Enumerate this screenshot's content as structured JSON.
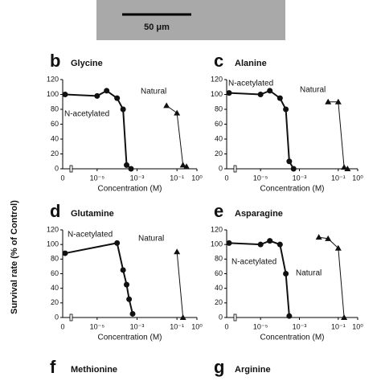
{
  "scale_bar": "50 μm",
  "y_axis_label": "Survival rate (% of Control)",
  "chart_data": [
    {
      "type": "line",
      "panel": "b",
      "title": "Glycine",
      "x_label": "Concentration (M)",
      "zero_label": "0",
      "xscale": "log",
      "xlim": [
        1e-06,
        1
      ],
      "xticks": [
        {
          "value": 1e-05,
          "label": "10⁻⁵"
        },
        {
          "value": 0.001,
          "label": "10⁻³"
        },
        {
          "value": 0.1,
          "label": "10⁻¹"
        },
        {
          "value": 1,
          "label": "10⁰"
        }
      ],
      "ylim": [
        0,
        120
      ],
      "yticks": [
        0,
        20,
        40,
        60,
        80,
        100,
        120
      ],
      "series": [
        {
          "name": "N-acetylated",
          "marker": "circle",
          "color": "#111",
          "x": [
            0,
            1e-05,
            3e-05,
            0.0001,
            0.0002,
            0.0003,
            0.0005
          ],
          "values": [
            100,
            98,
            105,
            95,
            80,
            5,
            0
          ]
        },
        {
          "name": "Natural",
          "marker": "triangle",
          "color": "#111",
          "x": [
            0.03,
            0.1,
            0.2,
            0.3
          ],
          "values": [
            85,
            75,
            5,
            3
          ]
        }
      ]
    },
    {
      "type": "line",
      "panel": "c",
      "title": "Alanine",
      "x_label": "Concentration (M)",
      "zero_label": "0",
      "xscale": "log",
      "xlim": [
        1e-06,
        1
      ],
      "xticks": [
        {
          "value": 1e-05,
          "label": "10⁻⁵"
        },
        {
          "value": 0.001,
          "label": "10⁻³"
        },
        {
          "value": 0.1,
          "label": "10⁻¹"
        },
        {
          "value": 1,
          "label": "10⁰"
        }
      ],
      "ylim": [
        0,
        120
      ],
      "yticks": [
        0,
        20,
        40,
        60,
        80,
        100,
        120
      ],
      "series": [
        {
          "name": "N-acetylated",
          "marker": "circle",
          "color": "#111",
          "x": [
            0,
            1e-05,
            3e-05,
            0.0001,
            0.0002,
            0.0003,
            0.0005
          ],
          "values": [
            102,
            100,
            105,
            95,
            80,
            10,
            0
          ]
        },
        {
          "name": "Natural",
          "marker": "triangle",
          "color": "#111",
          "x": [
            0.03,
            0.1,
            0.2,
            0.3
          ],
          "values": [
            90,
            90,
            2,
            0
          ]
        }
      ]
    },
    {
      "type": "line",
      "panel": "d",
      "title": "Glutamine",
      "x_label": "Concentration (M)",
      "zero_label": "0",
      "xscale": "log",
      "xlim": [
        1e-06,
        1
      ],
      "xticks": [
        {
          "value": 1e-05,
          "label": "10⁻⁵"
        },
        {
          "value": 0.001,
          "label": "10⁻³"
        },
        {
          "value": 0.1,
          "label": "10⁻¹"
        },
        {
          "value": 1,
          "label": "10⁰"
        }
      ],
      "ylim": [
        0,
        120
      ],
      "yticks": [
        0,
        20,
        40,
        60,
        80,
        100,
        120
      ],
      "series": [
        {
          "name": "N-acetylated",
          "marker": "circle",
          "color": "#111",
          "x": [
            0,
            0.0001,
            0.0002,
            0.0003,
            0.0004,
            0.0006
          ],
          "values": [
            88,
            102,
            65,
            45,
            25,
            5
          ]
        },
        {
          "name": "Natural",
          "marker": "triangle",
          "color": "#111",
          "x": [
            0.1,
            0.2
          ],
          "values": [
            90,
            0
          ]
        }
      ]
    },
    {
      "type": "line",
      "panel": "e",
      "title": "Asparagine",
      "x_label": "Concentration (M)",
      "zero_label": "0",
      "xscale": "log",
      "xlim": [
        1e-06,
        1
      ],
      "xticks": [
        {
          "value": 1e-05,
          "label": "10⁻⁵"
        },
        {
          "value": 0.001,
          "label": "10⁻³"
        },
        {
          "value": 0.1,
          "label": "10⁻¹"
        },
        {
          "value": 1,
          "label": "10⁰"
        }
      ],
      "ylim": [
        0,
        120
      ],
      "yticks": [
        0,
        20,
        40,
        60,
        80,
        100,
        120
      ],
      "series": [
        {
          "name": "N-acetylated",
          "marker": "circle",
          "color": "#111",
          "x": [
            0,
            1e-05,
            3e-05,
            0.0001,
            0.0002,
            0.0003
          ],
          "values": [
            102,
            100,
            105,
            100,
            60,
            2
          ]
        },
        {
          "name": "Natural",
          "marker": "triangle",
          "color": "#111",
          "x": [
            0.01,
            0.03,
            0.1,
            0.2
          ],
          "values": [
            110,
            108,
            95,
            0
          ]
        }
      ]
    },
    {
      "type": "line",
      "panel": "f",
      "title": "Methionine"
    },
    {
      "type": "line",
      "panel": "g",
      "title": "Arginine"
    }
  ]
}
